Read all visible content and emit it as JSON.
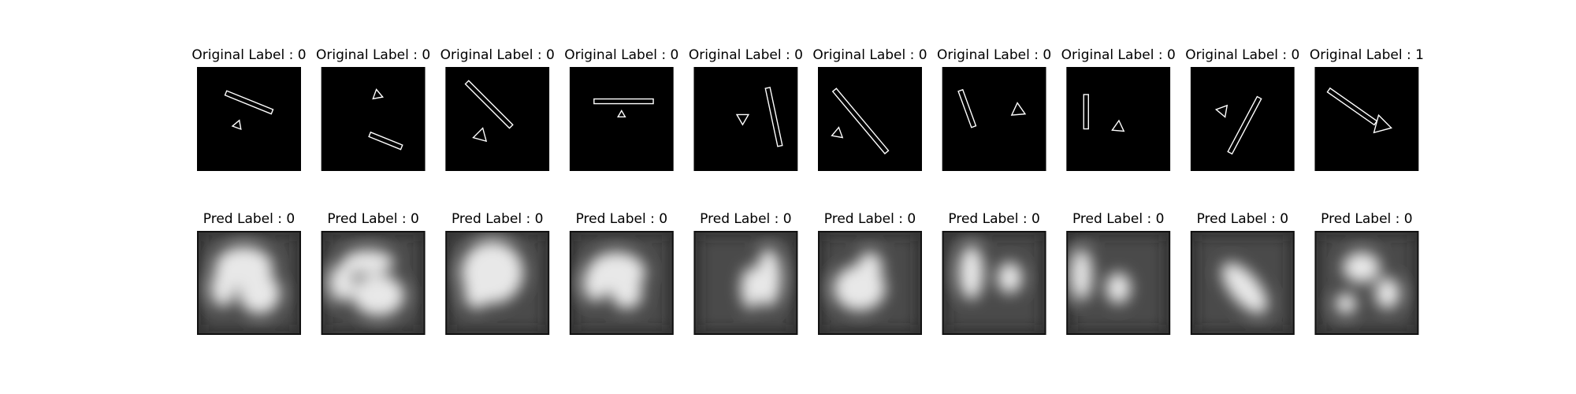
{
  "original_labels": [
    "Original Label : 0",
    "Original Label : 0",
    "Original Label : 0",
    "Original Label : 0",
    "Original Label : 0",
    "Original Label : 0",
    "Original Label : 0",
    "Original Label : 0",
    "Original Label : 0",
    "Original Label : 1"
  ],
  "pred_labels": [
    "Pred Label : 0",
    "Pred Label : 0",
    "Pred Label : 0",
    "Pred Label : 0",
    "Pred Label : 0",
    "Pred Label : 0",
    "Pred Label : 0",
    "Pred Label : 0",
    "Pred Label : 0",
    "Pred Label : 0"
  ]
}
